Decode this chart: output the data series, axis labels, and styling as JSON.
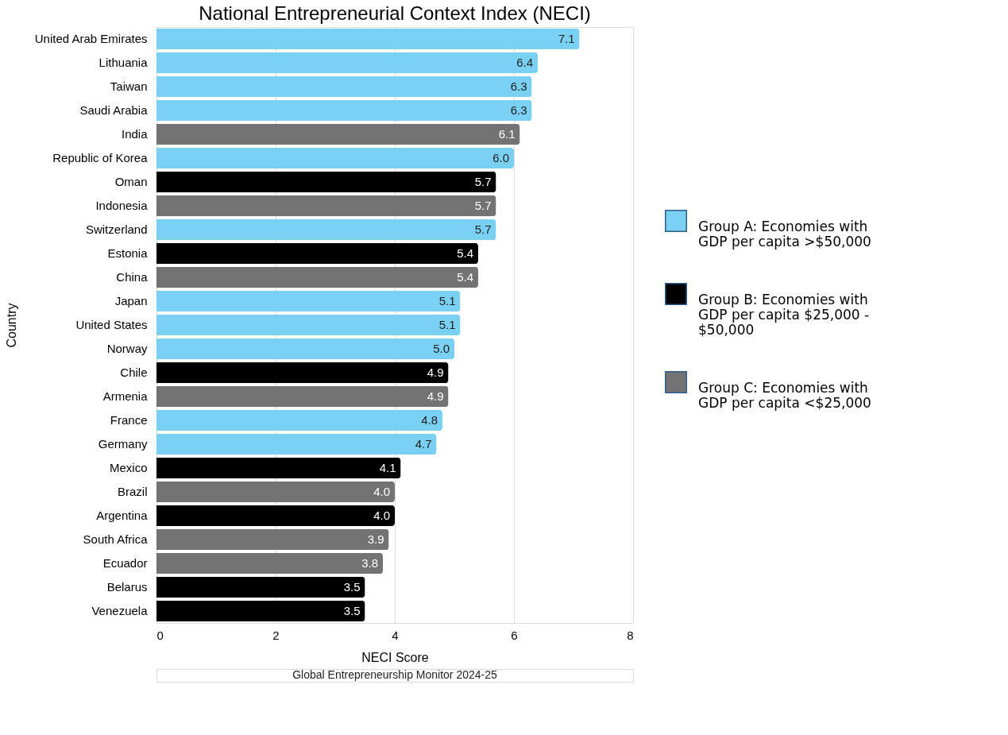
{
  "chart_data": {
    "type": "bar",
    "orientation": "horizontal",
    "title": "National Entrepreneurial Context Index (NECI)",
    "xlabel": "NECI Score",
    "ylabel": "Country",
    "categories": [
      "United Arab Emirates",
      "Lithuania",
      "Taiwan",
      "Saudi Arabia",
      "India",
      "Republic of Korea",
      "Oman",
      "Indonesia",
      "Switzerland",
      "Estonia",
      "China",
      "Japan",
      "United States",
      "Norway",
      "Chile",
      "Armenia",
      "France",
      "Germany",
      "Mexico",
      "Brazil",
      "Argentina",
      "South Africa",
      "Ecuador",
      "Belarus",
      "Venezuela"
    ],
    "series": [
      {
        "name": "Group A: Economies with GDP per capita >$50,000",
        "color": "#79d0f3",
        "values": [
          7.1,
          6.4,
          6.3,
          6.3,
          null,
          6.0,
          null,
          null,
          5.7,
          null,
          null,
          5.1,
          5.1,
          5.0,
          null,
          null,
          4.8,
          4.7,
          null,
          null,
          null,
          null,
          null,
          null,
          null
        ],
        "value_labels": [
          "7.1",
          "6.4",
          "6.3",
          "6.3",
          null,
          "6.0",
          null,
          null,
          "5.7",
          null,
          null,
          "5.1",
          "5.1",
          "5.0",
          null,
          null,
          "4.8",
          "4.7",
          null,
          null,
          null,
          null,
          null,
          null,
          null
        ]
      },
      {
        "name": "Group B: Economies with GDP per capita $25,000 - $50,000",
        "color": "#000000",
        "values": [
          null,
          null,
          null,
          null,
          null,
          null,
          5.7,
          null,
          null,
          5.4,
          null,
          null,
          null,
          null,
          4.9,
          null,
          null,
          null,
          4.1,
          null,
          4.0,
          null,
          null,
          3.5,
          3.5
        ],
        "value_labels": [
          null,
          null,
          null,
          null,
          null,
          null,
          "5.7",
          null,
          null,
          "5.4",
          null,
          null,
          null,
          null,
          "4.9",
          null,
          null,
          null,
          "4.1",
          null,
          "4.0",
          null,
          null,
          "3.5",
          "3.5"
        ]
      },
      {
        "name": "Group C: Economies with GDP per capita <$25,000",
        "color": "#737373",
        "values": [
          null,
          null,
          null,
          null,
          6.1,
          null,
          null,
          5.7,
          null,
          null,
          5.4,
          null,
          null,
          null,
          null,
          4.9,
          null,
          null,
          null,
          4.0,
          null,
          3.9,
          3.8,
          null,
          null
        ],
        "value_labels": [
          null,
          null,
          null,
          null,
          "6.1",
          null,
          null,
          "5.7",
          null,
          null,
          "5.4",
          null,
          null,
          null,
          null,
          "4.9",
          null,
          null,
          null,
          "4.0",
          null,
          "3.9",
          "3.8",
          null,
          null
        ]
      }
    ],
    "xlim": [
      0,
      8
    ],
    "xticks": [
      0,
      2,
      4,
      6,
      8
    ],
    "grid": "x",
    "legend": "right",
    "annotations": [
      "Global Entrepreneurship Monitor 2024-25"
    ]
  }
}
